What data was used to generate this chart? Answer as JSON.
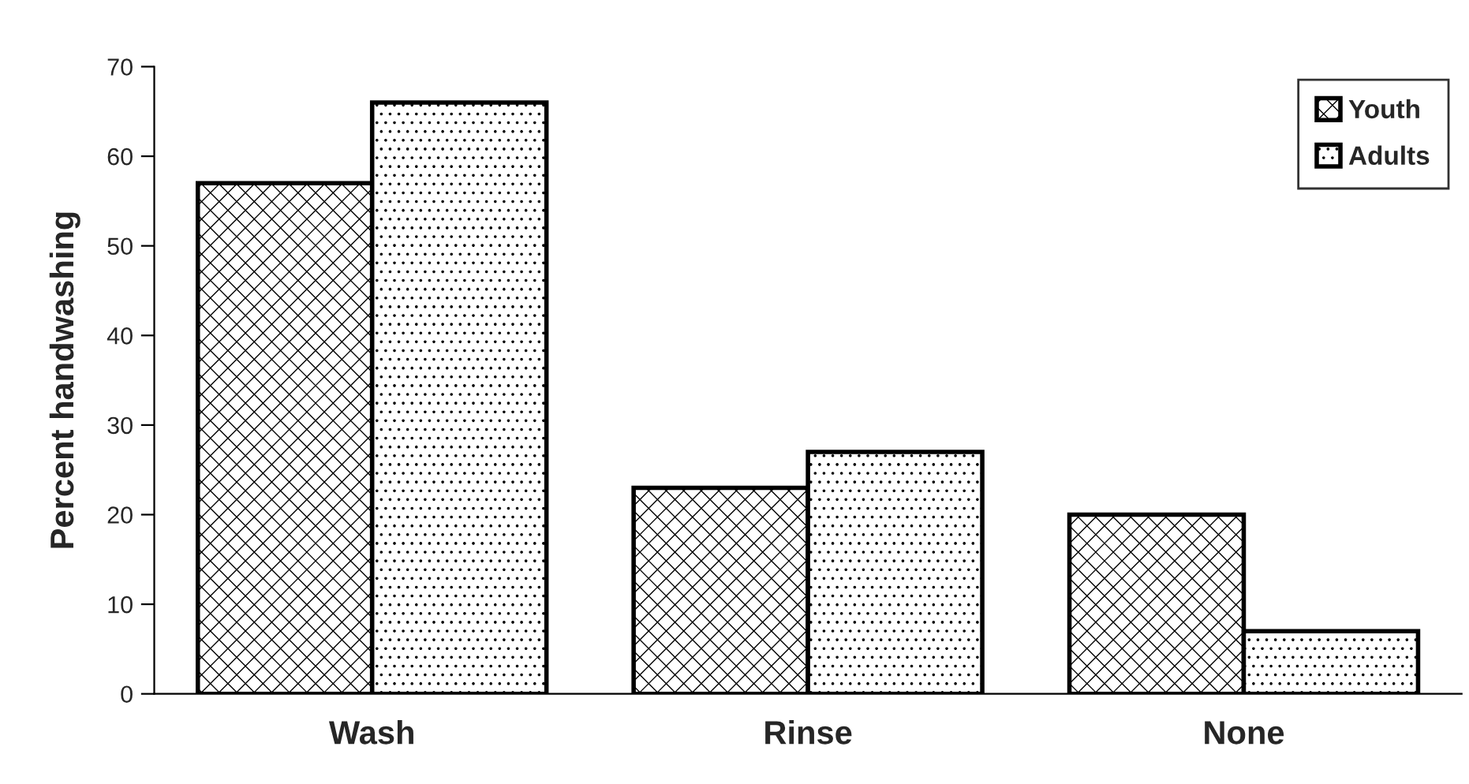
{
  "chart_data": {
    "type": "bar",
    "ylabel": "Percent handwashing",
    "categories": [
      "Wash",
      "Rinse",
      "None"
    ],
    "series": [
      {
        "name": "Youth",
        "color": "#000000",
        "values": [
          57,
          23,
          20
        ]
      },
      {
        "name": "Adults",
        "color": "#000000",
        "values": [
          66,
          27,
          7
        ]
      }
    ],
    "ylim": [
      0,
      70
    ],
    "yticks": [
      0,
      10,
      20,
      30,
      40,
      50,
      60,
      70
    ],
    "grid": false,
    "legend": "top right"
  }
}
